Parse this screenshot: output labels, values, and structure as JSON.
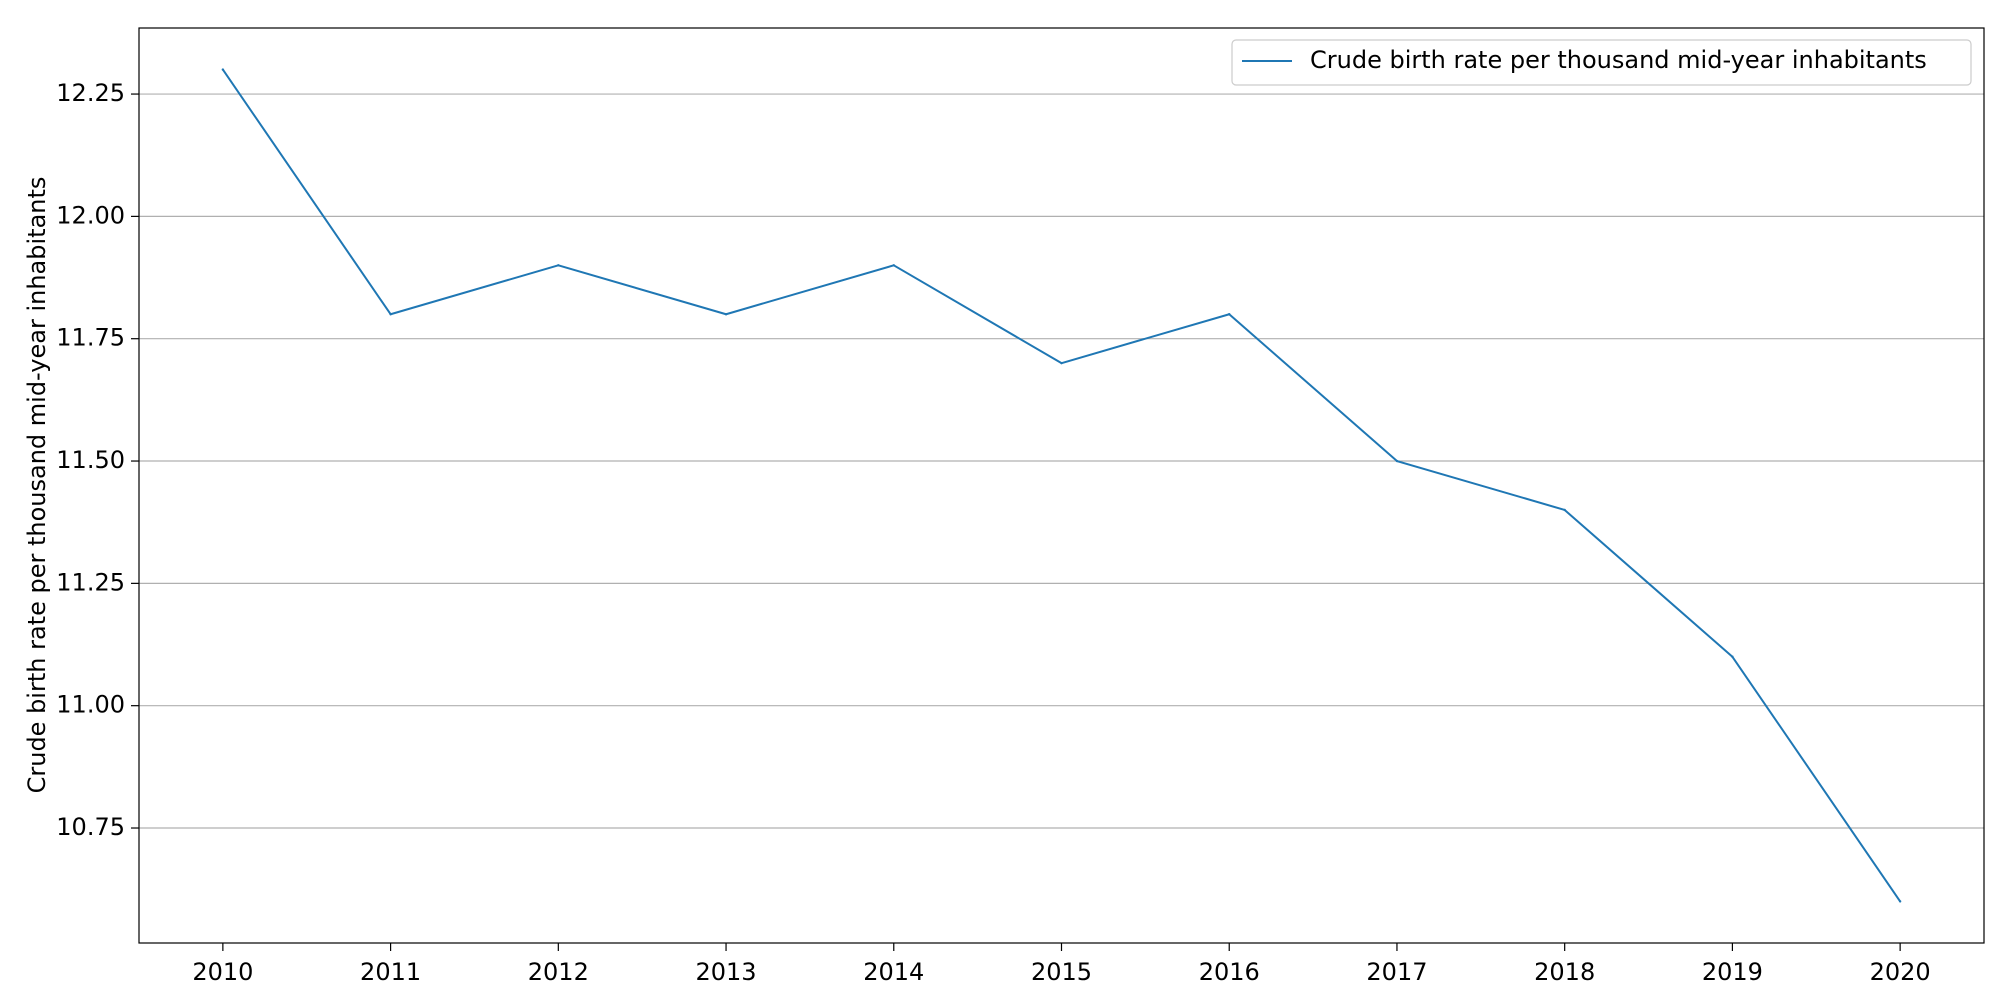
{
  "chart_data": {
    "type": "line",
    "title": "",
    "xlabel": "",
    "ylabel": "Crude birth rate per thousand mid-year inhabitants",
    "x": [
      2010,
      2011,
      2012,
      2013,
      2014,
      2015,
      2016,
      2017,
      2018,
      2019,
      2020
    ],
    "x_tick_labels": [
      "2010",
      "2011",
      "2012",
      "2013",
      "2014",
      "2015",
      "2016",
      "2017",
      "2018",
      "2019",
      "2020"
    ],
    "y_tick_values": [
      10.75,
      11.0,
      11.25,
      11.5,
      11.75,
      12.0,
      12.25
    ],
    "y_tick_labels": [
      "10.75",
      "11.00",
      "11.25",
      "11.50",
      "11.75",
      "12.00",
      "12.25"
    ],
    "xlim": [
      2009.5,
      2020.5
    ],
    "ylim": [
      10.515,
      12.385
    ],
    "grid": "horizontal",
    "legend_position": "top-right",
    "series": [
      {
        "name": "Crude birth rate per thousand mid-year inhabitants",
        "color": "#1f77b4",
        "values": [
          12.3,
          11.8,
          11.9,
          11.8,
          11.9,
          11.7,
          11.8,
          11.5,
          11.4,
          11.1,
          10.6
        ]
      }
    ]
  }
}
